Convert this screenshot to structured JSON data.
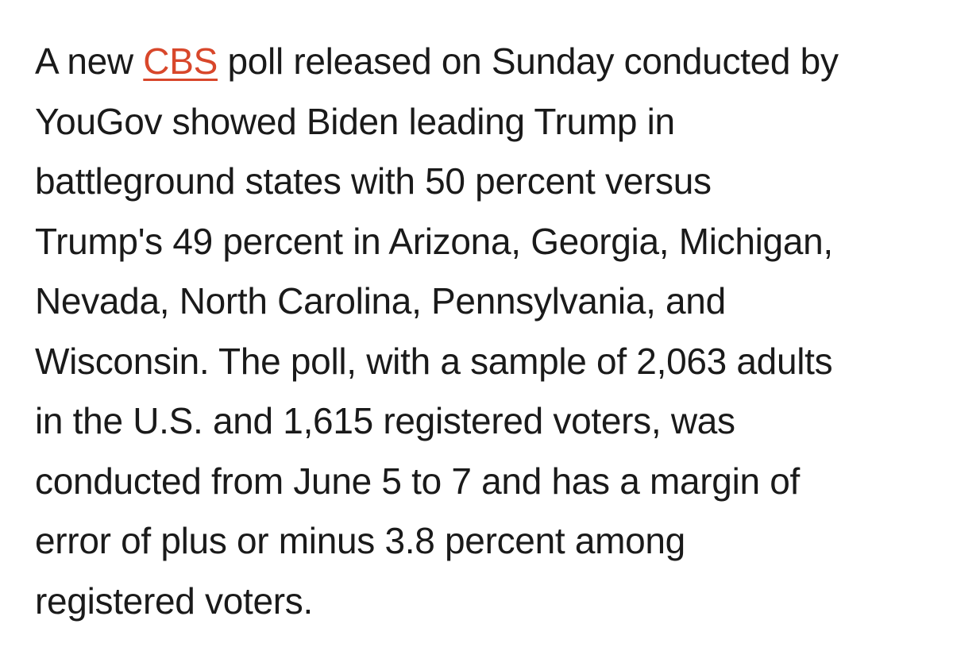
{
  "article": {
    "paragraph": {
      "line_1_before_link": "A new ",
      "link_text": "CBS",
      "line_1_after_link": " poll released on Sunday conducted by",
      "line_2": "YouGov showed Biden leading Trump in",
      "line_3": "battleground states with 50 percent versus",
      "line_4": "Trump's 49 percent in Arizona, Georgia, Michigan,",
      "line_5": "Nevada, North Carolina, Pennsylvania, and",
      "line_6": "Wisconsin. The poll, with a sample of 2,063 adults",
      "line_7": "in the U.S. and 1,615 registered voters, was",
      "line_8": "conducted from June 5 to 7 and has a margin of",
      "line_9": "error of plus or minus 3.8 percent among",
      "line_10": "registered voters."
    },
    "colors": {
      "text": "#1a1a1a",
      "link": "#d8472b",
      "background": "#ffffff"
    }
  }
}
